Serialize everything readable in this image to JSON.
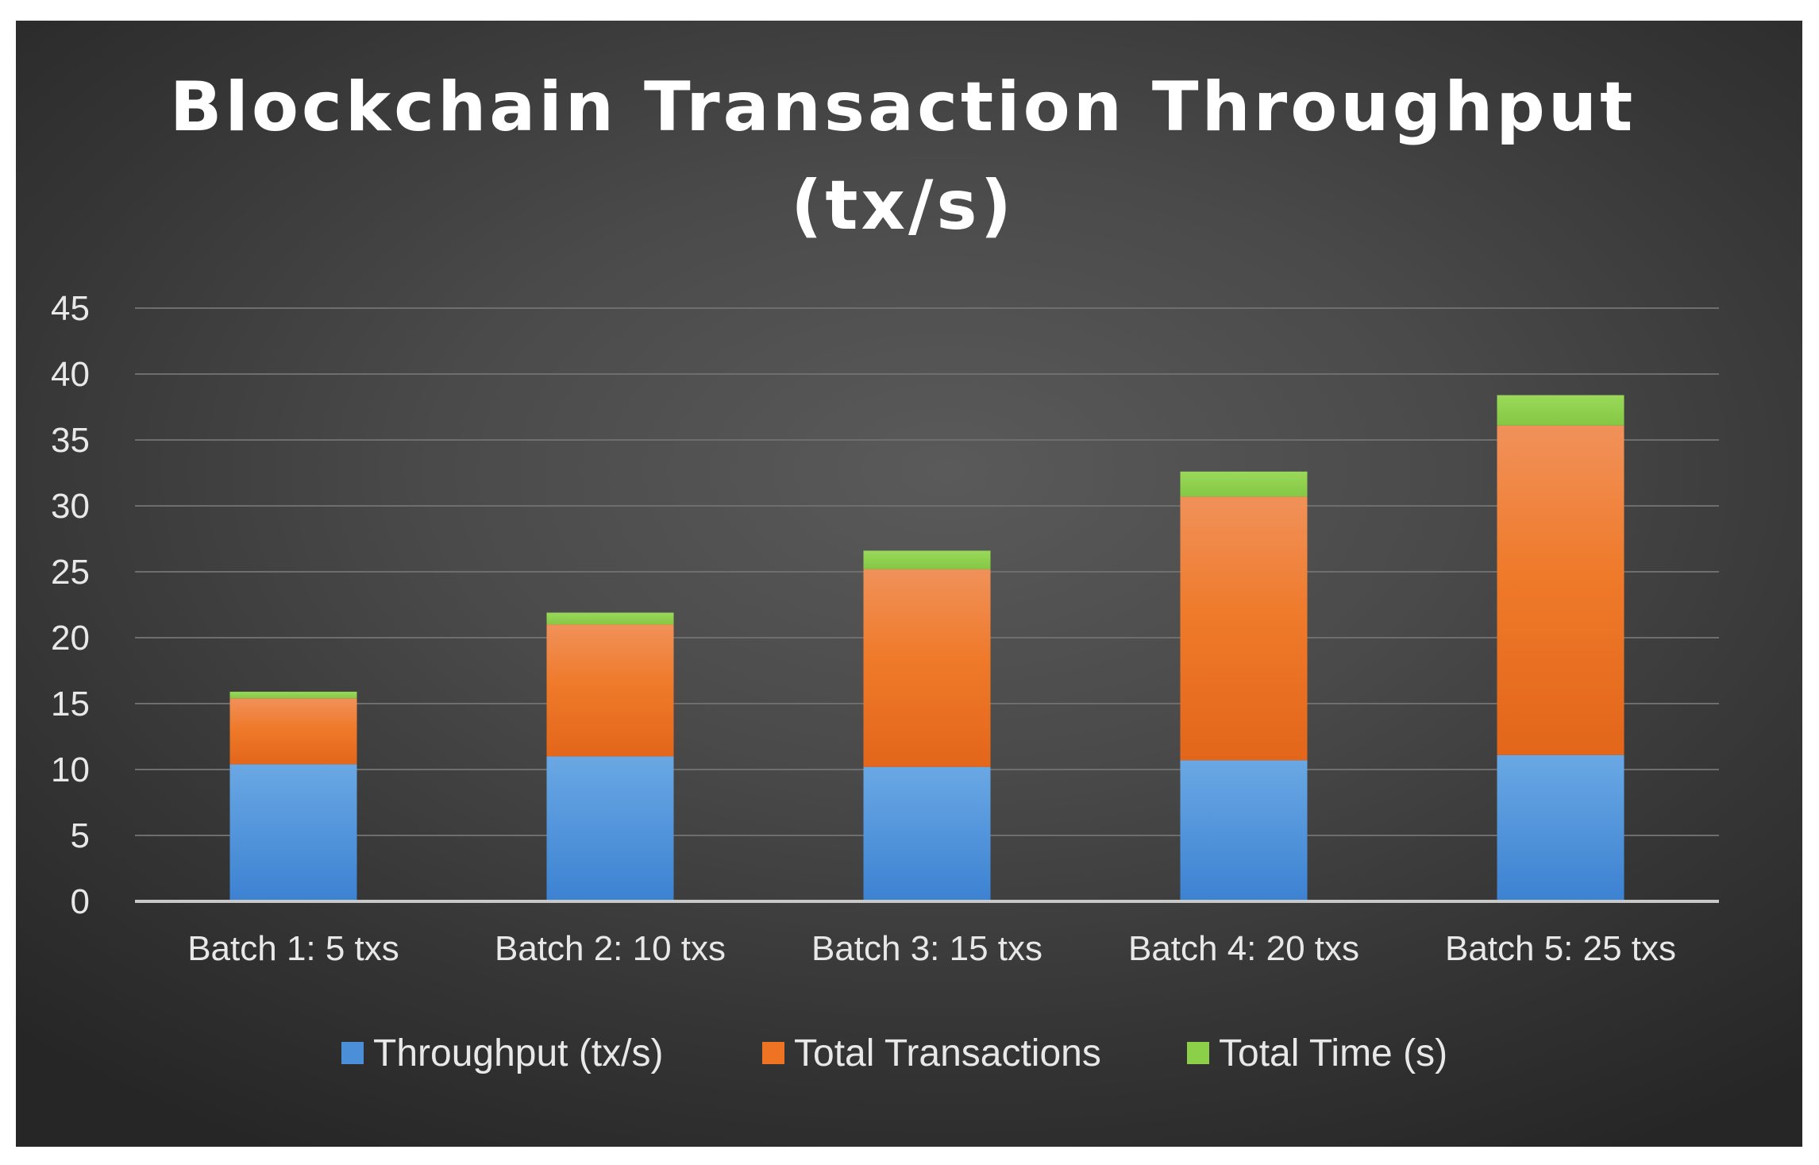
{
  "chart_data": {
    "type": "bar",
    "stacked": true,
    "title_lines": [
      "Blockchain Transaction Throughput",
      "(tx/s)"
    ],
    "categories": [
      "Batch 1: 5 txs",
      "Batch 2: 10 txs",
      "Batch 3: 15 txs",
      "Batch 4: 20 txs",
      "Batch 5: 25 txs"
    ],
    "series": [
      {
        "name": "Throughput (tx/s)",
        "values": [
          10.4,
          11.0,
          10.2,
          10.7,
          11.1
        ],
        "color": "#4a8fd8"
      },
      {
        "name": "Total Transactions",
        "values": [
          5,
          10,
          15,
          20,
          25
        ],
        "color": "#ee7424"
      },
      {
        "name": "Total Time (s)",
        "values": [
          0.5,
          0.9,
          1.4,
          1.9,
          2.3
        ],
        "color": "#8cd04a"
      }
    ],
    "yticks": [
      0,
      5,
      10,
      15,
      20,
      25,
      30,
      35,
      40,
      45
    ],
    "ylim": [
      0,
      45
    ],
    "grid": true,
    "legend_position": "bottom"
  }
}
